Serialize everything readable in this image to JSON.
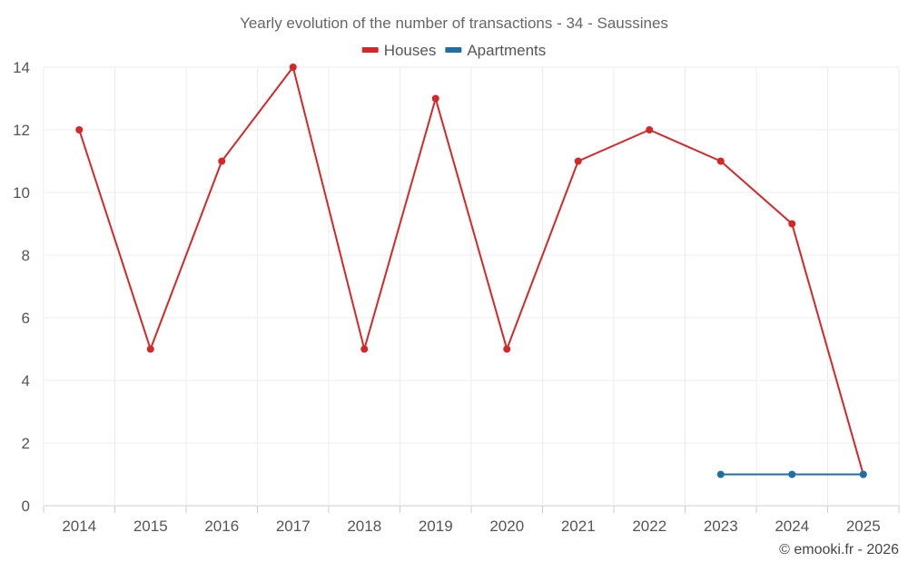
{
  "chart_data": {
    "type": "line",
    "title": "Yearly evolution of the number of transactions - 34 - Saussines",
    "xlabel": "",
    "ylabel": "",
    "categories": [
      "2014",
      "2015",
      "2016",
      "2017",
      "2018",
      "2019",
      "2020",
      "2021",
      "2022",
      "2023",
      "2024",
      "2025"
    ],
    "ylim": [
      0,
      14
    ],
    "yticks": [
      0,
      2,
      4,
      6,
      8,
      10,
      12,
      14
    ],
    "grid": true,
    "legend_position": "top-center",
    "series": [
      {
        "name": "Houses",
        "color": "#d62728",
        "values": [
          12,
          5,
          11,
          14,
          5,
          13,
          5,
          11,
          12,
          11,
          9,
          1
        ]
      },
      {
        "name": "Apartments",
        "color": "#1f6fa3",
        "values": [
          null,
          null,
          null,
          null,
          null,
          null,
          null,
          null,
          null,
          1,
          1,
          1
        ]
      }
    ]
  },
  "credit": "© emooki.fr - 2026"
}
